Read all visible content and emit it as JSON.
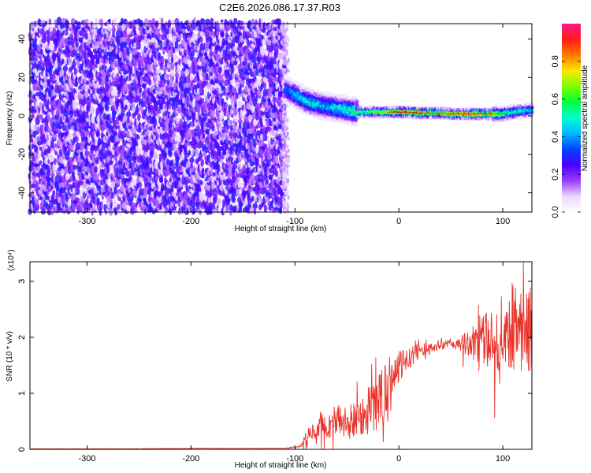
{
  "title": "C2E6.2026.086.17.37.R03",
  "chart_data": [
    {
      "type": "heatmap",
      "xlabel": "Height of straight line (km)",
      "ylabel": "Frequency (Hz)",
      "xlim": [
        -355,
        128
      ],
      "ylim": [
        -50,
        48
      ],
      "xticks": [
        -300,
        -200,
        -100,
        0,
        100
      ],
      "yticks": [
        -40,
        -20,
        0,
        20,
        40
      ],
      "grid": false,
      "colorbar": {
        "label": "Normalized spectral amplitude",
        "range": [
          0,
          1
        ],
        "ticks": [
          0.0,
          0.2,
          0.4,
          0.6,
          0.8
        ],
        "colors": [
          "#ffffff",
          "#e9d8ff",
          "#9b3bff",
          "#4b00ff",
          "#0044ff",
          "#00b7ff",
          "#00ffd2",
          "#00ff3c",
          "#7dff00",
          "#ffe600",
          "#ff7a00",
          "#ff1a1a",
          "#ff1a8c"
        ]
      },
      "noise_region": {
        "x_range": [
          -355,
          -110
        ],
        "y_range": [
          -50,
          48
        ],
        "typical_amplitude": [
          0.05,
          0.3
        ]
      },
      "ridge": {
        "x": [
          -110,
          -100,
          -90,
          -80,
          -70,
          -60,
          -50,
          -40,
          -30,
          -20,
          -10,
          0,
          10,
          20,
          30,
          40,
          50,
          60,
          70,
          80,
          90,
          100,
          110,
          128
        ],
        "frequency": [
          14,
          11,
          8,
          6,
          5,
          4,
          3,
          2,
          2,
          2,
          2,
          2,
          2,
          1.5,
          1.5,
          1.5,
          1,
          1,
          1,
          1,
          1,
          1,
          2,
          3
        ],
        "amplitude": [
          0.35,
          0.45,
          0.5,
          0.5,
          0.45,
          0.5,
          0.55,
          0.6,
          0.65,
          0.75,
          0.8,
          0.95,
          0.95,
          0.9,
          0.85,
          0.8,
          0.85,
          0.9,
          0.95,
          0.9,
          0.8,
          0.65,
          0.55,
          0.5
        ]
      }
    },
    {
      "type": "line",
      "xlabel": "Height of straight line (km)",
      "ylabel": "SNR (10 * v/v)",
      "y_multiplier": "(x10⁴)",
      "xlim": [
        -355,
        128
      ],
      "ylim": [
        0,
        3.35
      ],
      "xticks": [
        -300,
        -200,
        -100,
        0,
        100
      ],
      "yticks": [
        0,
        1,
        2,
        3
      ],
      "grid": false,
      "series": [
        {
          "color": "#e8332b",
          "x": [
            -355,
            -300,
            -250,
            -200,
            -150,
            -110,
            -95,
            -88,
            -80,
            -75,
            -70,
            -65,
            -60,
            -55,
            -50,
            -45,
            -40,
            -35,
            -30,
            -25,
            -20,
            -15,
            -10,
            -5,
            0,
            5,
            10,
            15,
            20,
            25,
            30,
            35,
            40,
            45,
            50,
            55,
            60,
            65,
            70,
            75,
            80,
            85,
            90,
            95,
            100,
            105,
            110,
            115,
            120,
            128
          ],
          "y": [
            0.01,
            0.01,
            0.01,
            0.02,
            0.02,
            0.02,
            0.05,
            0.25,
            0.35,
            0.45,
            0.4,
            0.45,
            0.55,
            0.5,
            0.45,
            0.5,
            0.55,
            0.65,
            0.7,
            0.75,
            0.8,
            1.0,
            1.2,
            1.35,
            1.45,
            1.55,
            1.62,
            1.7,
            1.75,
            1.78,
            1.8,
            1.82,
            1.85,
            1.87,
            1.88,
            1.88,
            1.9,
            1.88,
            1.9,
            1.92,
            1.95,
            1.95,
            1.98,
            2.0,
            2.1,
            2.15,
            2.2,
            2.25,
            2.2,
            2.1
          ],
          "noise_amplitude": [
            0.003,
            0.003,
            0.003,
            0.003,
            0.003,
            0.003,
            0.02,
            0.12,
            0.15,
            0.2,
            0.2,
            0.25,
            0.3,
            0.3,
            0.3,
            0.35,
            0.35,
            0.4,
            0.45,
            0.45,
            0.5,
            0.55,
            0.45,
            0.35,
            0.3,
            0.25,
            0.2,
            0.15,
            0.12,
            0.1,
            0.08,
            0.08,
            0.08,
            0.08,
            0.1,
            0.12,
            0.15,
            0.2,
            0.3,
            0.35,
            0.45,
            0.5,
            0.55,
            0.6,
            0.7,
            0.75,
            0.8,
            0.85,
            0.85,
            0.8
          ]
        }
      ]
    }
  ]
}
